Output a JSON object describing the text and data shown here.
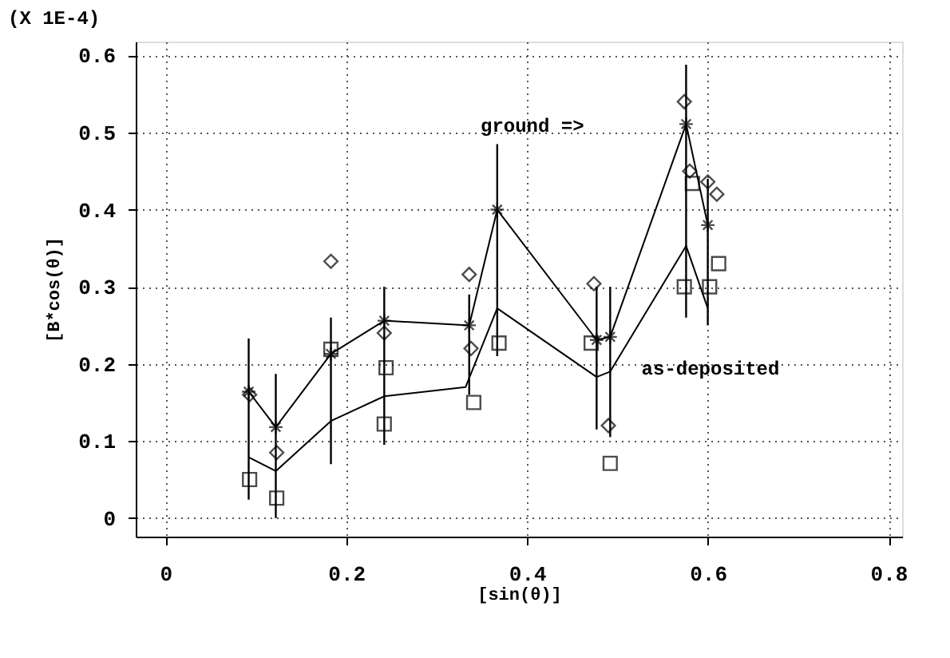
{
  "chart_data": {
    "type": "line",
    "title": "(X 1E-4)",
    "xlabel": "[sin(θ)]",
    "ylabel": "[B*cos(θ)]",
    "xlim": [
      -0.033,
      0.815
    ],
    "ylim": [
      -0.024,
      0.618
    ],
    "xticks": [
      0,
      0.2,
      0.4,
      0.6,
      0.8
    ],
    "yticks": [
      0,
      0.1,
      0.2,
      0.3,
      0.4,
      0.5,
      0.6
    ],
    "grid": true,
    "series": [
      {
        "marker": "cross",
        "color": "#000000",
        "x": [
          0.092,
          0.122,
          0.183,
          0.242,
          0.336,
          0.367,
          0.477,
          0.492,
          0.576,
          0.6
        ],
        "values": [
          0.164,
          0.118,
          0.213,
          0.256,
          0.25,
          0.4,
          0.231,
          0.235,
          0.511,
          0.38
        ],
        "errors": [
          [
            0.024,
            0.233
          ],
          [
            0.0,
            0.187
          ],
          [
            0.07,
            0.26
          ],
          [
            0.095,
            0.3
          ],
          [
            0.16,
            0.29
          ],
          [
            0.21,
            0.485
          ],
          [
            0.115,
            0.3
          ],
          [
            0.105,
            0.3
          ],
          [
            0.26,
            0.588
          ],
          [
            0.25,
            0.44
          ]
        ]
      },
      {
        "marker": "none",
        "color": "#000000",
        "x": [
          0.092,
          0.122,
          0.183,
          0.242,
          0.332,
          0.367,
          0.477,
          0.492,
          0.576,
          0.6
        ],
        "values": [
          0.079,
          0.061,
          0.126,
          0.158,
          0.17,
          0.272,
          0.183,
          0.19,
          0.353,
          0.272
        ]
      },
      {
        "type": "scatter",
        "marker": "diamond",
        "color": "#000000",
        "x": [
          0.093,
          0.123,
          0.183,
          0.242,
          0.336,
          0.338,
          0.474,
          0.49,
          0.574,
          0.58,
          0.6,
          0.61
        ],
        "values": [
          0.16,
          0.085,
          0.333,
          0.24,
          0.316,
          0.22,
          0.304,
          0.12,
          0.54,
          0.45,
          0.436,
          0.42
        ]
      },
      {
        "type": "scatter",
        "marker": "square",
        "color": "#000000",
        "x": [
          0.093,
          0.123,
          0.183,
          0.242,
          0.244,
          0.341,
          0.369,
          0.471,
          0.492,
          0.574,
          0.583,
          0.602,
          0.612
        ],
        "values": [
          0.05,
          0.026,
          0.219,
          0.122,
          0.195,
          0.15,
          0.227,
          0.227,
          0.071,
          0.3,
          0.434,
          0.3,
          0.33
        ]
      }
    ],
    "annotations": [
      "ground =>",
      "as-deposited"
    ]
  }
}
